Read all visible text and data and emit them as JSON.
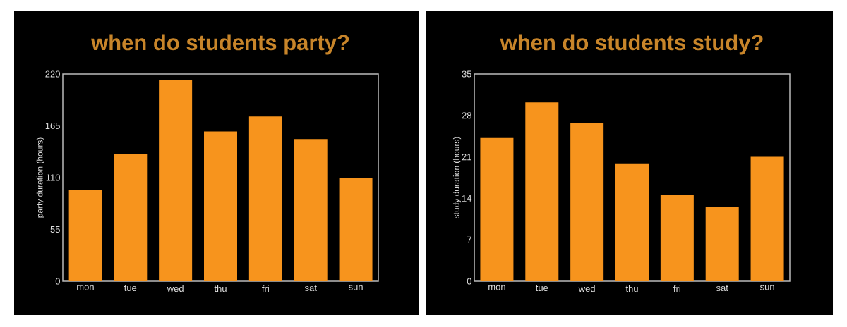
{
  "chart_data": [
    {
      "type": "bar",
      "title": "when do students party?",
      "ylabel": "party duration (hours)",
      "categories": [
        "mon",
        "tue",
        "wed",
        "thu",
        "fri",
        "sat",
        "sun"
      ],
      "values": [
        97,
        135,
        214,
        159,
        175,
        151,
        110
      ],
      "color": "#f7941d",
      "ylim": [
        0,
        220
      ],
      "yticks": [
        0,
        55,
        110,
        165,
        220
      ]
    },
    {
      "type": "bar",
      "title": "when do students study?",
      "ylabel": "study duration (hours)",
      "categories": [
        "mon",
        "tue",
        "wed",
        "thu",
        "fri",
        "sat",
        "sun"
      ],
      "values": [
        24.2,
        30.2,
        26.8,
        19.8,
        14.6,
        12.5,
        21.0
      ],
      "color": "#f7941d",
      "ylim": [
        0,
        35
      ],
      "yticks": [
        0,
        7,
        14,
        21,
        28,
        35
      ]
    }
  ]
}
